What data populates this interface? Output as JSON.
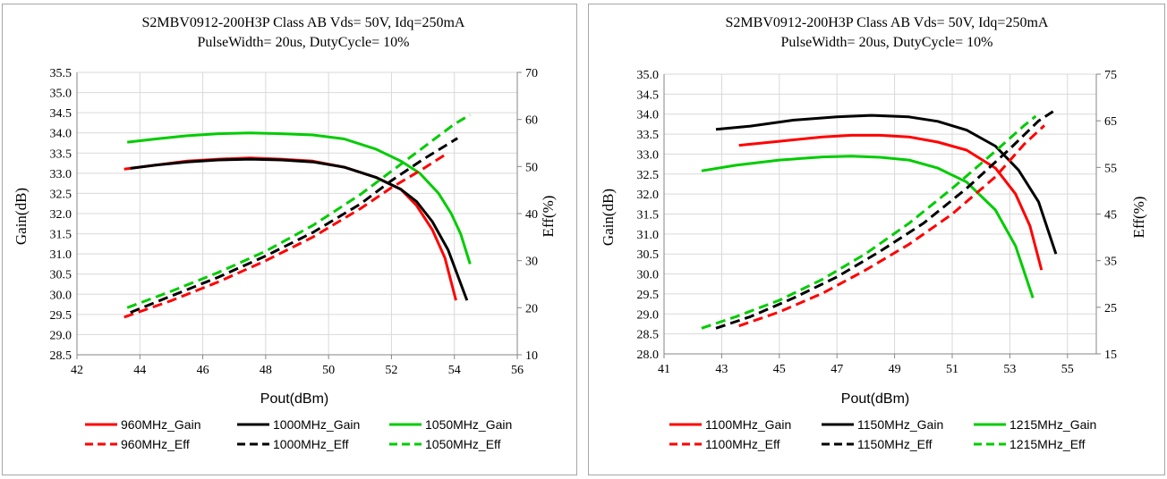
{
  "charts": [
    {
      "title_line1": "S2MBV0912-200H3P Class AB Vds= 50V, Idq=250mA",
      "title_line2": "PulseWidth= 20us, DutyCycle= 10%",
      "xlabel": "Pout(dBm)",
      "ylabel_left": "Gain(dB)",
      "ylabel_right": "Eff(%)",
      "xticks": [
        "42",
        "44",
        "46",
        "48",
        "50",
        "52",
        "54",
        "56"
      ],
      "yticks_left": [
        "28.5",
        "29.0",
        "29.5",
        "30.0",
        "30.5",
        "31.0",
        "31.5",
        "32.0",
        "32.5",
        "33.0",
        "33.5",
        "34.0",
        "34.5",
        "35.0",
        "35.5"
      ],
      "yticks_right": [
        "10",
        "20",
        "30",
        "40",
        "50",
        "60",
        "70"
      ]
    },
    {
      "title_line1": "S2MBV0912-200H3P Class AB Vds= 50V, Idq=250mA",
      "title_line2": "PulseWidth= 20us, DutyCycle= 10%",
      "xlabel": "Pout(dBm)",
      "ylabel_left": "Gain(dB)",
      "ylabel_right": "Eff(%)",
      "xticks": [
        "41",
        "43",
        "45",
        "47",
        "49",
        "51",
        "53",
        "55"
      ],
      "yticks_left": [
        "28.0",
        "28.5",
        "29.0",
        "29.5",
        "30.0",
        "30.5",
        "31.0",
        "31.5",
        "32.0",
        "32.5",
        "33.0",
        "33.5",
        "34.0",
        "34.5",
        "35.0"
      ],
      "yticks_right": [
        "15",
        "25",
        "35",
        "45",
        "55",
        "65",
        "75"
      ]
    }
  ],
  "colors": {
    "red": "#ff0000",
    "black": "#000000",
    "green": "#00cc00",
    "grid": "#d9d9d9",
    "axis": "#868686"
  },
  "chart_data": [
    {
      "type": "line",
      "title": "S2MBV0912-200H3P Class AB Vds= 50V, Idq=250mA PulseWidth= 20us, DutyCycle= 10%",
      "xlabel": "Pout(dBm)",
      "ylabel": "Gain(dB)",
      "ylabel_secondary": "Eff(%)",
      "xlim": [
        42,
        56
      ],
      "ylim": [
        28.5,
        35.5
      ],
      "ylim_secondary": [
        10,
        70
      ],
      "grid": true,
      "legend_position": "bottom",
      "series": [
        {
          "name": "960MHz_Gain",
          "color": "#ff0000",
          "dash": false,
          "axis": "left",
          "x": [
            43.5,
            44.5,
            45.5,
            46.5,
            47.5,
            48.5,
            49.5,
            50.5,
            51.5,
            52.3,
            52.8,
            53.3,
            53.7,
            54.05
          ],
          "y": [
            33.1,
            33.2,
            33.3,
            33.35,
            33.38,
            33.35,
            33.3,
            33.15,
            32.9,
            32.6,
            32.2,
            31.6,
            30.9,
            29.85
          ]
        },
        {
          "name": "1000MHz_Gain",
          "color": "#000000",
          "dash": false,
          "axis": "left",
          "x": [
            43.7,
            44.5,
            45.5,
            46.5,
            47.5,
            48.5,
            49.5,
            50.5,
            51.5,
            52.3,
            52.8,
            53.3,
            53.8,
            54.4
          ],
          "y": [
            33.12,
            33.2,
            33.28,
            33.33,
            33.35,
            33.33,
            33.28,
            33.15,
            32.9,
            32.6,
            32.3,
            31.8,
            31.1,
            29.85
          ]
        },
        {
          "name": "1050MHz_Gain",
          "color": "#00cc00",
          "dash": false,
          "axis": "left",
          "x": [
            43.6,
            44.5,
            45.5,
            46.5,
            47.5,
            48.5,
            49.5,
            50.5,
            51.5,
            52.3,
            52.9,
            53.5,
            53.9,
            54.2,
            54.5
          ],
          "y": [
            33.77,
            33.85,
            33.93,
            33.98,
            34.0,
            33.98,
            33.95,
            33.85,
            33.6,
            33.3,
            33.0,
            32.5,
            32.0,
            31.5,
            30.75
          ]
        },
        {
          "name": "960MHz_Eff",
          "color": "#ff0000",
          "dash": true,
          "axis": "right",
          "x": [
            43.5,
            45,
            46.5,
            48,
            49.5,
            51,
            52,
            53,
            53.7
          ],
          "y": [
            18,
            21.5,
            25.5,
            30,
            35,
            41,
            45.5,
            49.5,
            52.5
          ]
        },
        {
          "name": "1000MHz_Eff",
          "color": "#000000",
          "dash": true,
          "axis": "right",
          "x": [
            43.7,
            45,
            46.5,
            48,
            49.5,
            51,
            52,
            53,
            54.1
          ],
          "y": [
            19,
            22.5,
            26.5,
            31,
            36,
            42,
            47,
            51.5,
            56
          ]
        },
        {
          "name": "1050MHz_Eff",
          "color": "#00cc00",
          "dash": true,
          "axis": "right",
          "x": [
            43.6,
            45,
            46.5,
            48,
            49.5,
            51,
            52,
            53,
            54,
            54.5
          ],
          "y": [
            20,
            23.5,
            27.5,
            32,
            37.5,
            44,
            49,
            54,
            59,
            61
          ]
        }
      ]
    },
    {
      "type": "line",
      "title": "S2MBV0912-200H3P Class AB Vds= 50V, Idq=250mA PulseWidth= 20us, DutyCycle= 10%",
      "xlabel": "Pout(dBm)",
      "ylabel": "Gain(dB)",
      "ylabel_secondary": "Eff(%)",
      "xlim": [
        41,
        56
      ],
      "ylim": [
        28.0,
        35.0
      ],
      "ylim_secondary": [
        15,
        75
      ],
      "grid": true,
      "legend_position": "bottom",
      "series": [
        {
          "name": "1100MHz_Gain",
          "color": "#ff0000",
          "dash": false,
          "axis": "left",
          "x": [
            43.6,
            45,
            46.5,
            47.5,
            48.5,
            49.5,
            50.5,
            51.5,
            52.5,
            53.2,
            53.7,
            54.1
          ],
          "y": [
            33.22,
            33.32,
            33.43,
            33.47,
            33.47,
            33.43,
            33.3,
            33.1,
            32.65,
            32.0,
            31.2,
            30.1
          ]
        },
        {
          "name": "1150MHz_Gain",
          "color": "#000000",
          "dash": false,
          "axis": "left",
          "x": [
            42.8,
            44,
            45.5,
            47,
            48.2,
            49.5,
            50.5,
            51.5,
            52.5,
            53.3,
            54,
            54.6
          ],
          "y": [
            33.62,
            33.7,
            33.85,
            33.93,
            33.97,
            33.93,
            33.82,
            33.6,
            33.2,
            32.6,
            31.8,
            30.5
          ]
        },
        {
          "name": "1215MHz_Gain",
          "color": "#00cc00",
          "dash": false,
          "axis": "left",
          "x": [
            42.3,
            43.5,
            45,
            46.5,
            47.5,
            48.5,
            49.5,
            50.5,
            51.5,
            52.5,
            53.2,
            53.8
          ],
          "y": [
            32.58,
            32.72,
            32.85,
            32.93,
            32.95,
            32.92,
            32.85,
            32.65,
            32.3,
            31.6,
            30.7,
            29.4
          ]
        },
        {
          "name": "1100MHz_Eff",
          "color": "#ff0000",
          "dash": true,
          "axis": "right",
          "x": [
            43.6,
            45,
            46.5,
            48,
            49.5,
            51,
            52.5,
            53.5,
            54.2
          ],
          "y": [
            21,
            24,
            28,
            33,
            38.5,
            45,
            53,
            60,
            64
          ]
        },
        {
          "name": "1150MHz_Eff",
          "color": "#000000",
          "dash": true,
          "axis": "right",
          "x": [
            42.8,
            44,
            45.5,
            47,
            48.5,
            50,
            51.5,
            53,
            54,
            54.5
          ],
          "y": [
            20.5,
            23,
            27,
            31.5,
            37,
            43,
            50.5,
            59,
            65,
            67
          ]
        },
        {
          "name": "1215MHz_Eff",
          "color": "#00cc00",
          "dash": true,
          "axis": "right",
          "x": [
            42.3,
            43.5,
            45,
            46.5,
            48,
            49.5,
            51,
            52.5,
            53.5,
            53.9
          ],
          "y": [
            20.5,
            23,
            26.5,
            31,
            36.5,
            43,
            50.5,
            58.5,
            64,
            66
          ]
        }
      ]
    }
  ]
}
